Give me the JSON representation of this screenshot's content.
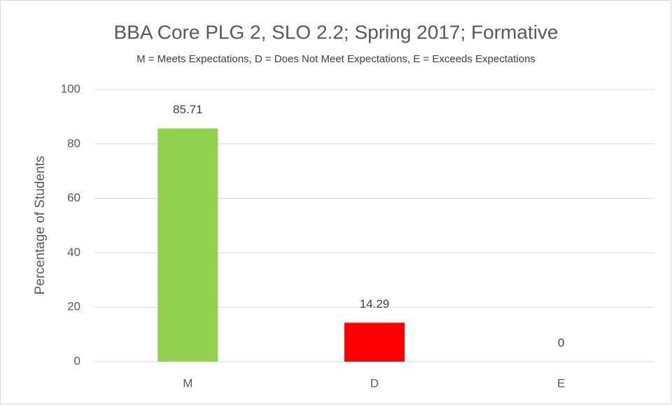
{
  "chart_data": {
    "type": "bar",
    "title": "BBA Core PLG 2, SLO 2.2; Spring 2017; Formative",
    "subtitle": "M = Meets Expectations, D = Does Not Meet Expectations, E = Exceeds Expectations",
    "y_label": "Percentage of Students",
    "categories": [
      "M",
      "D",
      "E"
    ],
    "values": [
      85.71,
      14.29,
      0
    ],
    "colors": [
      "#92d050",
      "#ff0000",
      "#4472c4"
    ],
    "ylim": [
      0,
      100
    ],
    "yticks": [
      0,
      20,
      40,
      60,
      80,
      100
    ],
    "grid": true
  }
}
